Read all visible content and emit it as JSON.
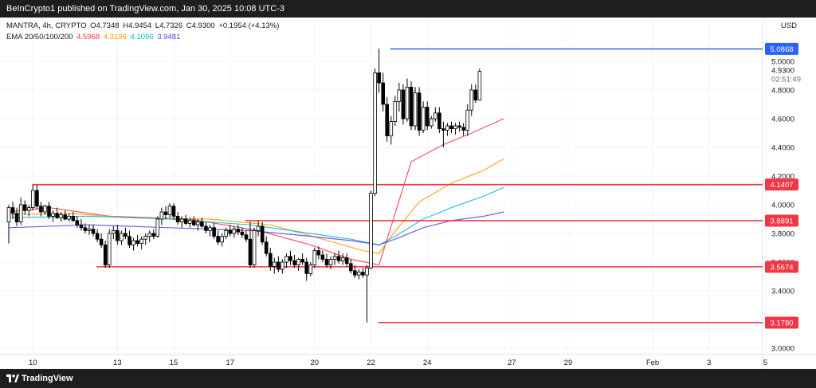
{
  "header": {
    "publish_text": "BeInCrypto1 published on TradingView.com, Jan 30, 2025 10:08 UTC-3"
  },
  "legend": {
    "symbol_line": "MANTRA, 4h, CRYPTO",
    "ohlc": {
      "open": "O4.7348",
      "high": "H4.9454",
      "low": "L4.7326",
      "close": "C4.9300",
      "change": "+0.1954 (+4.13%)"
    },
    "ema_label": "EMA 20/50/100/200",
    "ema_values": [
      {
        "value": "4.5968",
        "color": "#f23645"
      },
      {
        "value": "4.3196",
        "color": "#ff9800"
      },
      {
        "value": "4.1096",
        "color": "#00bcd4"
      },
      {
        "value": "3.9481",
        "color": "#5b3fd9"
      }
    ]
  },
  "footer": {
    "brand": "TradingView",
    "logo_icon": "tradingview-logo-icon"
  },
  "chart_data": {
    "type": "candlestick",
    "symbol": "MANTRA",
    "interval": "4h",
    "currency": "USD",
    "ylim": [
      3.0,
      5.15
    ],
    "y_ticks": [
      "3.0000",
      "3.4000",
      "3.6000",
      "3.8000",
      "4.0000",
      "4.2000",
      "4.4000",
      "4.6000",
      "4.8000",
      "5.0000"
    ],
    "x_ticks": [
      {
        "label": "10",
        "i": 6
      },
      {
        "label": "13",
        "i": 27
      },
      {
        "label": "15",
        "i": 41
      },
      {
        "label": "17",
        "i": 55
      },
      {
        "label": "20",
        "i": 76
      },
      {
        "label": "22",
        "i": 90
      },
      {
        "label": "24",
        "i": 104
      },
      {
        "label": "27",
        "i": 125
      },
      {
        "label": "29",
        "i": 139
      },
      {
        "label": "Feb",
        "i": 160
      },
      {
        "label": "3",
        "i": 174
      },
      {
        "label": "5",
        "i": 188
      }
    ],
    "candles": [
      {
        "o": 3.88,
        "h": 4.0,
        "l": 3.73,
        "c": 3.98
      },
      {
        "o": 3.98,
        "h": 4.02,
        "l": 3.9,
        "c": 3.94
      },
      {
        "o": 3.94,
        "h": 3.98,
        "l": 3.85,
        "c": 3.88
      },
      {
        "o": 3.88,
        "h": 4.05,
        "l": 3.86,
        "c": 4.0
      },
      {
        "o": 4.0,
        "h": 4.03,
        "l": 3.93,
        "c": 3.96
      },
      {
        "o": 3.96,
        "h": 4.0,
        "l": 3.92,
        "c": 3.98
      },
      {
        "o": 3.98,
        "h": 4.14,
        "l": 3.96,
        "c": 4.1
      },
      {
        "o": 4.1,
        "h": 4.14,
        "l": 3.97,
        "c": 3.99
      },
      {
        "o": 3.99,
        "h": 4.02,
        "l": 3.92,
        "c": 3.95
      },
      {
        "o": 3.95,
        "h": 4.0,
        "l": 3.93,
        "c": 3.99
      },
      {
        "o": 3.99,
        "h": 4.02,
        "l": 3.9,
        "c": 3.92
      },
      {
        "o": 3.92,
        "h": 3.96,
        "l": 3.88,
        "c": 3.94
      },
      {
        "o": 3.94,
        "h": 3.98,
        "l": 3.9,
        "c": 3.91
      },
      {
        "o": 3.91,
        "h": 3.95,
        "l": 3.88,
        "c": 3.93
      },
      {
        "o": 3.93,
        "h": 3.96,
        "l": 3.89,
        "c": 3.9
      },
      {
        "o": 3.9,
        "h": 3.94,
        "l": 3.88,
        "c": 3.92
      },
      {
        "o": 3.92,
        "h": 3.95,
        "l": 3.88,
        "c": 3.89
      },
      {
        "o": 3.89,
        "h": 3.92,
        "l": 3.84,
        "c": 3.86
      },
      {
        "o": 3.86,
        "h": 3.9,
        "l": 3.82,
        "c": 3.84
      },
      {
        "o": 3.84,
        "h": 3.87,
        "l": 3.8,
        "c": 3.82
      },
      {
        "o": 3.82,
        "h": 3.86,
        "l": 3.79,
        "c": 3.83
      },
      {
        "o": 3.83,
        "h": 3.86,
        "l": 3.78,
        "c": 3.8
      },
      {
        "o": 3.8,
        "h": 3.83,
        "l": 3.74,
        "c": 3.76
      },
      {
        "o": 3.76,
        "h": 3.8,
        "l": 3.7,
        "c": 3.72
      },
      {
        "o": 3.72,
        "h": 3.75,
        "l": 3.56,
        "c": 3.58
      },
      {
        "o": 3.58,
        "h": 3.83,
        "l": 3.56,
        "c": 3.8
      },
      {
        "o": 3.8,
        "h": 3.85,
        "l": 3.76,
        "c": 3.82
      },
      {
        "o": 3.82,
        "h": 3.86,
        "l": 3.72,
        "c": 3.75
      },
      {
        "o": 3.75,
        "h": 3.82,
        "l": 3.72,
        "c": 3.8
      },
      {
        "o": 3.8,
        "h": 3.84,
        "l": 3.76,
        "c": 3.78
      },
      {
        "o": 3.78,
        "h": 3.82,
        "l": 3.7,
        "c": 3.72
      },
      {
        "o": 3.72,
        "h": 3.77,
        "l": 3.68,
        "c": 3.75
      },
      {
        "o": 3.75,
        "h": 3.79,
        "l": 3.71,
        "c": 3.73
      },
      {
        "o": 3.73,
        "h": 3.78,
        "l": 3.69,
        "c": 3.76
      },
      {
        "o": 3.76,
        "h": 3.8,
        "l": 3.72,
        "c": 3.78
      },
      {
        "o": 3.78,
        "h": 3.82,
        "l": 3.74,
        "c": 3.8
      },
      {
        "o": 3.8,
        "h": 3.83,
        "l": 3.76,
        "c": 3.78
      },
      {
        "o": 3.78,
        "h": 3.92,
        "l": 3.77,
        "c": 3.9
      },
      {
        "o": 3.9,
        "h": 3.98,
        "l": 3.86,
        "c": 3.95
      },
      {
        "o": 3.95,
        "h": 3.99,
        "l": 3.9,
        "c": 3.93
      },
      {
        "o": 3.93,
        "h": 4.01,
        "l": 3.91,
        "c": 3.99
      },
      {
        "o": 3.99,
        "h": 4.01,
        "l": 3.9,
        "c": 3.92
      },
      {
        "o": 3.92,
        "h": 3.95,
        "l": 3.86,
        "c": 3.88
      },
      {
        "o": 3.88,
        "h": 3.92,
        "l": 3.84,
        "c": 3.9
      },
      {
        "o": 3.9,
        "h": 3.93,
        "l": 3.86,
        "c": 3.87
      },
      {
        "o": 3.87,
        "h": 3.91,
        "l": 3.84,
        "c": 3.89
      },
      {
        "o": 3.89,
        "h": 3.92,
        "l": 3.85,
        "c": 3.86
      },
      {
        "o": 3.86,
        "h": 3.9,
        "l": 3.82,
        "c": 3.88
      },
      {
        "o": 3.88,
        "h": 3.91,
        "l": 3.84,
        "c": 3.85
      },
      {
        "o": 3.85,
        "h": 3.88,
        "l": 3.8,
        "c": 3.82
      },
      {
        "o": 3.82,
        "h": 3.86,
        "l": 3.78,
        "c": 3.84
      },
      {
        "o": 3.84,
        "h": 3.87,
        "l": 3.76,
        "c": 3.78
      },
      {
        "o": 3.78,
        "h": 3.82,
        "l": 3.72,
        "c": 3.74
      },
      {
        "o": 3.74,
        "h": 3.8,
        "l": 3.71,
        "c": 3.78
      },
      {
        "o": 3.78,
        "h": 3.84,
        "l": 3.76,
        "c": 3.82
      },
      {
        "o": 3.82,
        "h": 3.86,
        "l": 3.78,
        "c": 3.8
      },
      {
        "o": 3.8,
        "h": 3.85,
        "l": 3.77,
        "c": 3.83
      },
      {
        "o": 3.83,
        "h": 3.86,
        "l": 3.79,
        "c": 3.81
      },
      {
        "o": 3.81,
        "h": 3.84,
        "l": 3.77,
        "c": 3.79
      },
      {
        "o": 3.79,
        "h": 3.82,
        "l": 3.74,
        "c": 3.76
      },
      {
        "o": 3.76,
        "h": 3.88,
        "l": 3.56,
        "c": 3.58
      },
      {
        "o": 3.58,
        "h": 3.84,
        "l": 3.56,
        "c": 3.82
      },
      {
        "o": 3.82,
        "h": 3.89,
        "l": 3.78,
        "c": 3.85
      },
      {
        "o": 3.85,
        "h": 3.88,
        "l": 3.72,
        "c": 3.74
      },
      {
        "o": 3.74,
        "h": 3.78,
        "l": 3.64,
        "c": 3.66
      },
      {
        "o": 3.66,
        "h": 3.7,
        "l": 3.54,
        "c": 3.57
      },
      {
        "o": 3.57,
        "h": 3.63,
        "l": 3.52,
        "c": 3.6
      },
      {
        "o": 3.6,
        "h": 3.64,
        "l": 3.53,
        "c": 3.55
      },
      {
        "o": 3.55,
        "h": 3.62,
        "l": 3.52,
        "c": 3.6
      },
      {
        "o": 3.6,
        "h": 3.66,
        "l": 3.56,
        "c": 3.64
      },
      {
        "o": 3.64,
        "h": 3.68,
        "l": 3.58,
        "c": 3.61
      },
      {
        "o": 3.61,
        "h": 3.65,
        "l": 3.56,
        "c": 3.58
      },
      {
        "o": 3.58,
        "h": 3.63,
        "l": 3.54,
        "c": 3.62
      },
      {
        "o": 3.62,
        "h": 3.66,
        "l": 3.58,
        "c": 3.6
      },
      {
        "o": 3.6,
        "h": 3.63,
        "l": 3.47,
        "c": 3.52
      },
      {
        "o": 3.52,
        "h": 3.6,
        "l": 3.5,
        "c": 3.58
      },
      {
        "o": 3.58,
        "h": 3.7,
        "l": 3.56,
        "c": 3.68
      },
      {
        "o": 3.68,
        "h": 3.71,
        "l": 3.62,
        "c": 3.65
      },
      {
        "o": 3.65,
        "h": 3.68,
        "l": 3.6,
        "c": 3.62
      },
      {
        "o": 3.62,
        "h": 3.66,
        "l": 3.56,
        "c": 3.58
      },
      {
        "o": 3.58,
        "h": 3.64,
        "l": 3.55,
        "c": 3.62
      },
      {
        "o": 3.62,
        "h": 3.66,
        "l": 3.58,
        "c": 3.64
      },
      {
        "o": 3.64,
        "h": 3.68,
        "l": 3.59,
        "c": 3.61
      },
      {
        "o": 3.61,
        "h": 3.66,
        "l": 3.58,
        "c": 3.63
      },
      {
        "o": 3.63,
        "h": 3.66,
        "l": 3.57,
        "c": 3.59
      },
      {
        "o": 3.59,
        "h": 3.62,
        "l": 3.52,
        "c": 3.54
      },
      {
        "o": 3.54,
        "h": 3.58,
        "l": 3.49,
        "c": 3.51
      },
      {
        "o": 3.51,
        "h": 3.55,
        "l": 3.48,
        "c": 3.53
      },
      {
        "o": 3.53,
        "h": 3.56,
        "l": 3.49,
        "c": 3.51
      },
      {
        "o": 3.51,
        "h": 3.58,
        "l": 3.18,
        "c": 3.56
      },
      {
        "o": 3.56,
        "h": 4.1,
        "l": 3.55,
        "c": 4.08
      },
      {
        "o": 4.08,
        "h": 4.95,
        "l": 4.06,
        "c": 4.92
      },
      {
        "o": 4.92,
        "h": 5.09,
        "l": 4.78,
        "c": 4.85
      },
      {
        "o": 4.85,
        "h": 4.92,
        "l": 4.65,
        "c": 4.7
      },
      {
        "o": 4.7,
        "h": 4.75,
        "l": 4.44,
        "c": 4.48
      },
      {
        "o": 4.48,
        "h": 4.62,
        "l": 4.42,
        "c": 4.58
      },
      {
        "o": 4.58,
        "h": 4.76,
        "l": 4.55,
        "c": 4.72
      },
      {
        "o": 4.72,
        "h": 4.85,
        "l": 4.65,
        "c": 4.8
      },
      {
        "o": 4.8,
        "h": 4.84,
        "l": 4.56,
        "c": 4.6
      },
      {
        "o": 4.6,
        "h": 4.88,
        "l": 4.58,
        "c": 4.82
      },
      {
        "o": 4.82,
        "h": 4.86,
        "l": 4.52,
        "c": 4.55
      },
      {
        "o": 4.55,
        "h": 4.82,
        "l": 4.52,
        "c": 4.78
      },
      {
        "o": 4.78,
        "h": 4.82,
        "l": 4.48,
        "c": 4.52
      },
      {
        "o": 4.52,
        "h": 4.72,
        "l": 4.5,
        "c": 4.68
      },
      {
        "o": 4.68,
        "h": 4.72,
        "l": 4.52,
        "c": 4.55
      },
      {
        "o": 4.55,
        "h": 4.62,
        "l": 4.53,
        "c": 4.6
      },
      {
        "o": 4.6,
        "h": 4.68,
        "l": 4.58,
        "c": 4.64
      },
      {
        "o": 4.64,
        "h": 4.68,
        "l": 4.5,
        "c": 4.53
      },
      {
        "o": 4.53,
        "h": 4.58,
        "l": 4.4,
        "c": 4.52
      },
      {
        "o": 4.52,
        "h": 4.57,
        "l": 4.48,
        "c": 4.55
      },
      {
        "o": 4.55,
        "h": 4.58,
        "l": 4.5,
        "c": 4.53
      },
      {
        "o": 4.53,
        "h": 4.57,
        "l": 4.49,
        "c": 4.55
      },
      {
        "o": 4.55,
        "h": 4.58,
        "l": 4.51,
        "c": 4.54
      },
      {
        "o": 4.54,
        "h": 4.57,
        "l": 4.48,
        "c": 4.52
      },
      {
        "o": 4.52,
        "h": 4.7,
        "l": 4.48,
        "c": 4.66
      },
      {
        "o": 4.66,
        "h": 4.84,
        "l": 4.62,
        "c": 4.8
      },
      {
        "o": 4.8,
        "h": 4.84,
        "l": 4.71,
        "c": 4.73
      },
      {
        "o": 4.73,
        "h": 4.95,
        "l": 4.73,
        "c": 4.93
      }
    ],
    "ema": [
      {
        "name": "EMA 20",
        "color": "#f23645",
        "points": [
          [
            0,
            3.95
          ],
          [
            10,
            3.98
          ],
          [
            25,
            3.92
          ],
          [
            45,
            3.9
          ],
          [
            62,
            3.82
          ],
          [
            75,
            3.72
          ],
          [
            85,
            3.62
          ],
          [
            92,
            3.58
          ],
          [
            95,
            3.85
          ],
          [
            100,
            4.3
          ],
          [
            108,
            4.42
          ],
          [
            115,
            4.5
          ],
          [
            123,
            4.6
          ]
        ]
      },
      {
        "name": "EMA 50",
        "color": "#ff9800",
        "points": [
          [
            0,
            3.93
          ],
          [
            15,
            3.94
          ],
          [
            30,
            3.91
          ],
          [
            50,
            3.9
          ],
          [
            65,
            3.86
          ],
          [
            78,
            3.76
          ],
          [
            88,
            3.68
          ],
          [
            92,
            3.66
          ],
          [
            95,
            3.78
          ],
          [
            102,
            4.02
          ],
          [
            110,
            4.15
          ],
          [
            118,
            4.24
          ],
          [
            123,
            4.32
          ]
        ]
      },
      {
        "name": "EMA 100",
        "color": "#00bcd4",
        "points": [
          [
            0,
            3.91
          ],
          [
            20,
            3.92
          ],
          [
            40,
            3.9
          ],
          [
            60,
            3.86
          ],
          [
            75,
            3.8
          ],
          [
            85,
            3.76
          ],
          [
            92,
            3.72
          ],
          [
            96,
            3.78
          ],
          [
            103,
            3.9
          ],
          [
            110,
            3.98
          ],
          [
            118,
            4.06
          ],
          [
            123,
            4.12
          ]
        ]
      },
      {
        "name": "EMA 200",
        "color": "#5b3fd9",
        "points": [
          [
            0,
            3.84
          ],
          [
            20,
            3.86
          ],
          [
            40,
            3.84
          ],
          [
            60,
            3.82
          ],
          [
            75,
            3.78
          ],
          [
            85,
            3.75
          ],
          [
            92,
            3.72
          ],
          [
            96,
            3.76
          ],
          [
            103,
            3.84
          ],
          [
            110,
            3.89
          ],
          [
            118,
            3.92
          ],
          [
            123,
            3.95
          ]
        ]
      }
    ],
    "levels": [
      {
        "value": 5.0868,
        "label": "5.0868",
        "color": "#2962ff",
        "from": 95,
        "to": 197
      },
      {
        "value": 4.1407,
        "label": "4.1407",
        "color": "#f23645",
        "from": 6,
        "to": 197
      },
      {
        "value": 3.8891,
        "label": "3.8891",
        "color": "#f23645",
        "from": 59,
        "to": 197
      },
      {
        "value": 3.5674,
        "label": "3.5674",
        "color": "#f23645",
        "from": 22,
        "to": 197
      },
      {
        "value": 3.178,
        "label": "3.1780",
        "color": "#f23645",
        "from": 92,
        "to": 197
      }
    ],
    "last_price": {
      "value": "4.9300",
      "countdown": "02:51:49"
    },
    "colors": {
      "up": "#000000",
      "down": "#000000",
      "up_fill": "#ffffff",
      "down_fill": "#000000",
      "grid": "#f0f3fa",
      "axis_text": "#131722"
    }
  }
}
